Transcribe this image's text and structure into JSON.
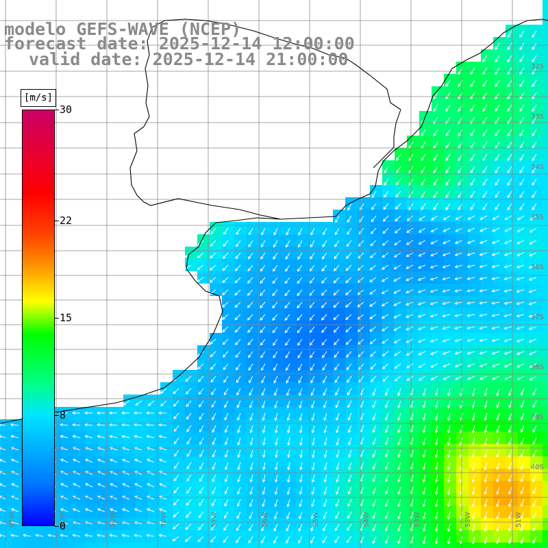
{
  "title": {
    "line1": "modelo GEFS-WAVE (NCEP)",
    "line2": "forecast date: 2025-12-14 12:00:00",
    "line3": "valid date: 2025-12-14 21:00:00"
  },
  "colorbar": {
    "unit": "[m/s]",
    "min": 0,
    "max": 30,
    "ticks": [
      {
        "value": 30,
        "label": "30"
      },
      {
        "value": 22,
        "label": "22"
      },
      {
        "value": 15,
        "label": "15"
      },
      {
        "value": 8,
        "label": "8"
      },
      {
        "value": 0,
        "label": "0"
      }
    ]
  },
  "map": {
    "lat_labels": [
      "32S",
      "33S",
      "34S",
      "35S",
      "36S",
      "37S",
      "38S",
      "39S",
      "40S"
    ],
    "lon_labels": [
      "61W",
      "60W",
      "59W",
      "58W",
      "57W",
      "56W",
      "55W",
      "54W",
      "53W",
      "52W",
      "51W"
    ],
    "colors": {
      "land": "#ffffff",
      "coastline": "#000000",
      "grid": "#888888",
      "arrow": "#ffffff"
    }
  }
}
